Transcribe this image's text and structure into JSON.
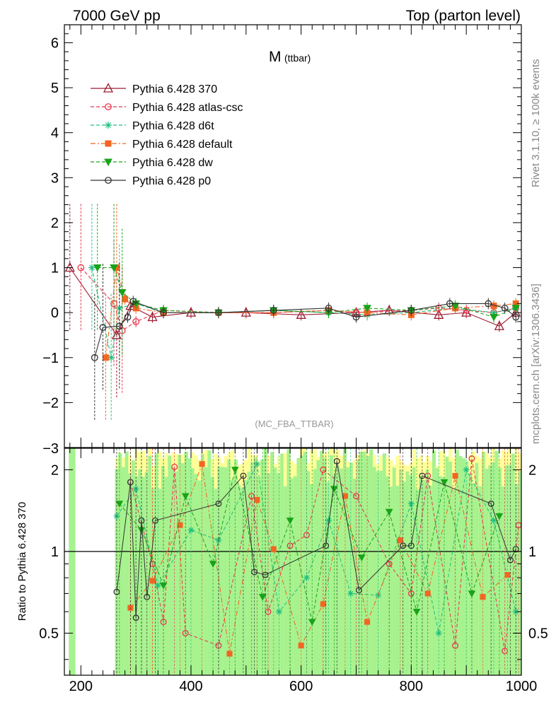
{
  "header": {
    "left": "7000 GeV pp",
    "right": "Top (parton level)"
  },
  "side_labels": {
    "rivet": "Rivet 3.1.10, ≥ 100k events",
    "mcplots": "mcplots.cern.ch [arXiv:1306.3436]"
  },
  "chart_data": [
    {
      "type": "line",
      "title": "M",
      "title_sub": "(ttbar)",
      "watermark": "(MC_FBA_TTBAR)",
      "xlim": [
        170,
        1000
      ],
      "ylim": [
        -3,
        6.4
      ],
      "yticks": [
        "−2",
        "−1",
        "0",
        "1",
        "2",
        "3",
        "4",
        "5",
        "6"
      ],
      "ytick_values": [
        -2,
        -1,
        0,
        1,
        2,
        3,
        4,
        5,
        6
      ],
      "ytick_cut": "−3",
      "legend_position": "top-left",
      "series": [
        {
          "name": "Pythia 6.428 370",
          "color": "#9b1b30",
          "marker": "open-triangle",
          "dash": "solid",
          "x": [
            180,
            265,
            290,
            330,
            400,
            500,
            600,
            700,
            760,
            850,
            900,
            960,
            990
          ],
          "y": [
            1.0,
            -0.5,
            0.15,
            -0.1,
            0.0,
            0.0,
            -0.05,
            0.0,
            0.05,
            -0.05,
            0.0,
            -0.3,
            0.0
          ]
        },
        {
          "name": "Pythia 6.428 atlas-csc",
          "color": "#e8334b",
          "marker": "open-circle",
          "dash": "dash",
          "x": [
            200,
            260,
            275,
            300,
            350,
            450,
            550,
            650,
            700,
            800,
            850,
            900,
            950,
            990
          ],
          "y": [
            1.0,
            0.2,
            -0.4,
            -0.2,
            0.05,
            0.0,
            0.0,
            0.05,
            0.0,
            0.05,
            0.1,
            0.05,
            0.0,
            0.1
          ]
        },
        {
          "name": "Pythia 6.428 d6t",
          "color": "#1fbf7f",
          "marker": "asterisk",
          "dash": "dash",
          "x": [
            220,
            255,
            270,
            300,
            350,
            450,
            550,
            650,
            720,
            800,
            880,
            950,
            990
          ],
          "y": [
            1.0,
            -1.0,
            0.1,
            0.2,
            0.0,
            0.0,
            0.05,
            0.0,
            -0.05,
            0.0,
            0.1,
            0.0,
            0.1
          ]
        },
        {
          "name": "Pythia 6.428 default",
          "color": "#f26522",
          "marker": "filled-square",
          "dash": "dashdot",
          "x": [
            245,
            265,
            280,
            300,
            350,
            450,
            550,
            650,
            720,
            800,
            880,
            950,
            990
          ],
          "y": [
            -1.0,
            1.0,
            0.3,
            0.1,
            0.0,
            0.0,
            0.0,
            0.05,
            0.0,
            -0.05,
            0.1,
            0.15,
            0.2
          ]
        },
        {
          "name": "Pythia 6.428 dw",
          "color": "#19a319",
          "marker": "filled-triangle-down",
          "dash": "dash",
          "x": [
            230,
            260,
            275,
            300,
            350,
            450,
            550,
            650,
            720,
            800,
            880,
            950,
            990
          ],
          "y": [
            1.0,
            1.0,
            0.45,
            0.2,
            0.05,
            0.0,
            0.05,
            0.0,
            0.1,
            0.05,
            0.15,
            -0.1,
            0.1
          ]
        },
        {
          "name": "Pythia 6.428 p0",
          "color": "#333333",
          "marker": "open-circle",
          "dash": "solid",
          "x": [
            225,
            240,
            270,
            285,
            295,
            350,
            450,
            550,
            650,
            700,
            800,
            870,
            940,
            970,
            990
          ],
          "y": [
            -1.0,
            -0.33,
            -0.3,
            -0.1,
            0.25,
            0.0,
            0.0,
            0.05,
            0.1,
            -0.1,
            0.05,
            0.2,
            0.2,
            0.1,
            -0.1
          ]
        }
      ]
    },
    {
      "type": "line",
      "ylabel": "Ratio to Pythia 6.428 370",
      "xlim": [
        170,
        1000
      ],
      "ylim": [
        0.35,
        2.4
      ],
      "yscale": "log",
      "yticks": [
        "0.5",
        "1",
        "2"
      ],
      "ytick_values": [
        0.5,
        1,
        2
      ],
      "xticks": [
        "200",
        "400",
        "600",
        "800",
        "1000"
      ],
      "xtick_values": [
        200,
        400,
        600,
        800,
        1000
      ],
      "reference_line": 1,
      "series": [
        {
          "name": "Pythia 6.428 atlas-csc",
          "color": "#e8334b",
          "x": [
            290,
            330,
            350,
            370,
            390,
            450,
            510,
            540,
            580,
            610,
            640,
            700,
            760,
            800,
            830,
            880,
            910,
            970,
            995
          ],
          "y": [
            1.8,
            0.9,
            0.55,
            2.05,
            0.5,
            0.45,
            1.6,
            0.6,
            1.05,
            1.15,
            2.0,
            1.6,
            0.9,
            0.7,
            1.9,
            0.45,
            2.2,
            0.43,
            1.25
          ]
        },
        {
          "name": "Pythia 6.428 d6t",
          "color": "#1fbf7f",
          "x": [
            265,
            300,
            340,
            400,
            450,
            520,
            560,
            610,
            650,
            690,
            740,
            800,
            850,
            900,
            950,
            990
          ],
          "y": [
            1.35,
            1.7,
            0.75,
            1.2,
            1.1,
            2.1,
            0.6,
            0.8,
            1.3,
            0.7,
            0.69,
            1.5,
            0.5,
            2.0,
            1.3,
            0.6
          ]
        },
        {
          "name": "Pythia 6.428 default",
          "color": "#f26522",
          "x": [
            290,
            330,
            380,
            420,
            470,
            520,
            550,
            600,
            640,
            680,
            720,
            780,
            830,
            880,
            930,
            975
          ],
          "y": [
            0.62,
            0.78,
            1.25,
            2.1,
            0.42,
            1.55,
            1.02,
            0.45,
            0.64,
            1.6,
            0.55,
            1.1,
            0.7,
            1.9,
            0.68,
            0.82
          ]
        },
        {
          "name": "Pythia 6.428 dw",
          "color": "#19a319",
          "x": [
            270,
            310,
            350,
            390,
            440,
            480,
            530,
            580,
            620,
            660,
            710,
            760,
            810,
            860,
            910,
            960
          ],
          "y": [
            1.5,
            1.2,
            0.75,
            1.6,
            0.9,
            2.0,
            0.68,
            1.3,
            0.55,
            1.7,
            0.95,
            1.4,
            0.6,
            1.8,
            0.7,
            1.35
          ]
        },
        {
          "name": "Pythia 6.428 p0",
          "color": "#333333",
          "x": [
            265,
            290,
            300,
            310,
            320,
            335,
            450,
            495,
            515,
            535,
            645,
            665,
            705,
            785,
            800,
            820,
            945,
            980,
            990
          ],
          "y": [
            0.71,
            1.8,
            0.57,
            1.3,
            0.68,
            1.3,
            1.5,
            1.9,
            0.84,
            0.82,
            1.05,
            2.15,
            0.72,
            1.05,
            1.05,
            1.9,
            1.5,
            0.93,
            1.02
          ]
        }
      ]
    }
  ]
}
